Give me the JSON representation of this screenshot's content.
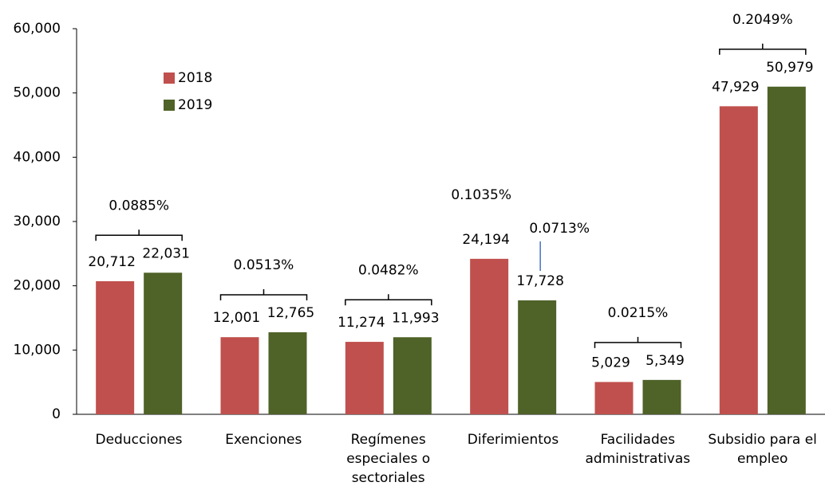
{
  "chart_data": {
    "type": "bar",
    "categories": [
      "Deducciones",
      "Exenciones",
      "Regímenes especiales o sectoriales",
      "Diferimientos",
      "Facilidades administrativas",
      "Subsidio para el empleo"
    ],
    "series": [
      {
        "name": "2018",
        "color": "#c0504d",
        "values": [
          20712,
          12001,
          11274,
          24194,
          5029,
          47929
        ],
        "value_labels": [
          "20,712",
          "12,001",
          "11,274",
          "24,194",
          "5,029",
          "47,929"
        ]
      },
      {
        "name": "2019",
        "color": "#4f6228",
        "values": [
          22031,
          12765,
          11993,
          17728,
          5349,
          50979
        ],
        "value_labels": [
          "22,031",
          "12,765",
          "11,993",
          "17,728",
          "5,349",
          "50,979"
        ]
      }
    ],
    "ylim": [
      0,
      60000
    ],
    "yticks": [
      0,
      {
        "value": 10000,
        "label": "10,000"
      },
      {
        "value": 20000,
        "label": "20,000"
      },
      {
        "value": 30000,
        "label": "30,000"
      },
      {
        "value": 40000,
        "label": "40,000"
      },
      {
        "value": 50000,
        "label": "50,000"
      },
      {
        "value": 60000,
        "label": "60,000"
      }
    ],
    "annotations": [
      {
        "label": "0.0885%",
        "category": 0
      },
      {
        "label": "0.0513%",
        "category": 1
      },
      {
        "label": "0.0482%",
        "category": 2
      },
      {
        "label": "0.1035%",
        "category": 3,
        "series": 0
      },
      {
        "label": "0.0713%",
        "category": 3,
        "series": 1,
        "line_color": "#4472c4"
      },
      {
        "label": "0.0215%",
        "category": 4
      },
      {
        "label": "0.2049%",
        "category": 5
      }
    ],
    "grid": false
  }
}
